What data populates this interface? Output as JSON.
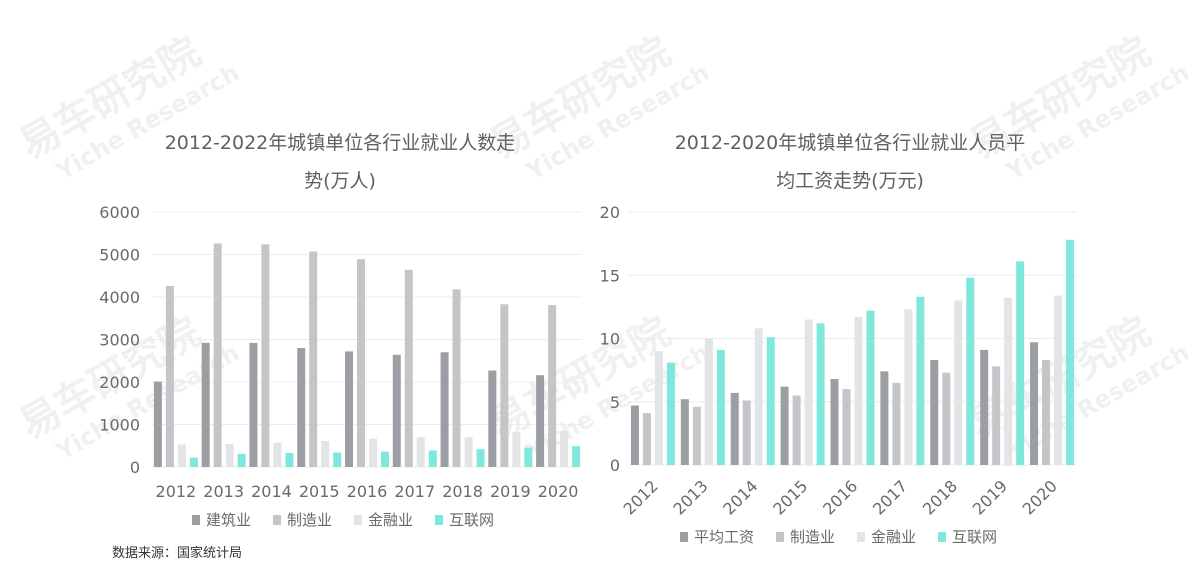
{
  "watermark": {
    "text": "易车研究院",
    "sub": "Yiche Research"
  },
  "source": "数据来源：国家统计局",
  "chart_data": [
    {
      "type": "bar",
      "title_line1": "2012-2022年城镇单位各行业就业人数走",
      "title_line2": "势(万人)",
      "categories": [
        "2012",
        "2013",
        "2014",
        "2015",
        "2016",
        "2017",
        "2018",
        "2019",
        "2020"
      ],
      "ylim": [
        0,
        6000
      ],
      "yticks": [
        "0",
        "1000",
        "2000",
        "3000",
        "4000",
        "5000",
        "6000"
      ],
      "grid": true,
      "legend_position": "bottom",
      "series": [
        {
          "name": "建筑业",
          "color": "#9b9ea3",
          "values": [
            2010,
            2920,
            2920,
            2800,
            2720,
            2640,
            2700,
            2270,
            2160
          ]
        },
        {
          "name": "制造业",
          "color": "#c3c5c8",
          "values": [
            4260,
            5260,
            5240,
            5070,
            4890,
            4640,
            4180,
            3830,
            3810
          ]
        },
        {
          "name": "金融业",
          "color": "#e3e4e6",
          "values": [
            530,
            540,
            570,
            610,
            670,
            700,
            700,
            820,
            860
          ]
        },
        {
          "name": "互联网",
          "color": "#7ee8dc",
          "values": [
            220,
            310,
            330,
            340,
            360,
            390,
            420,
            460,
            490
          ]
        }
      ]
    },
    {
      "type": "bar",
      "title_line1": "2012-2020年城镇单位各行业就业人员平",
      "title_line2": "均工资走势(万元)",
      "categories": [
        "2012",
        "2013",
        "2014",
        "2015",
        "2016",
        "2017",
        "2018",
        "2019",
        "2020"
      ],
      "ylim": [
        0,
        20
      ],
      "yticks": [
        "0",
        "5",
        "10",
        "15",
        "20"
      ],
      "grid": true,
      "legend_position": "bottom",
      "series": [
        {
          "name": "平均工资",
          "color": "#9b9ea3",
          "values": [
            4.7,
            5.2,
            5.7,
            6.2,
            6.8,
            7.4,
            8.3,
            9.1,
            9.7
          ]
        },
        {
          "name": "制造业",
          "color": "#c3c5c8",
          "values": [
            4.1,
            4.6,
            5.1,
            5.5,
            6.0,
            6.5,
            7.3,
            7.8,
            8.3
          ]
        },
        {
          "name": "金融业",
          "color": "#e3e4e6",
          "values": [
            9.0,
            10.0,
            10.8,
            11.5,
            11.7,
            12.3,
            13.0,
            13.2,
            13.4
          ]
        },
        {
          "name": "互联网",
          "color": "#7ee8dc",
          "values": [
            8.1,
            9.1,
            10.1,
            11.2,
            12.2,
            13.3,
            14.8,
            16.1,
            17.8
          ]
        }
      ]
    }
  ]
}
